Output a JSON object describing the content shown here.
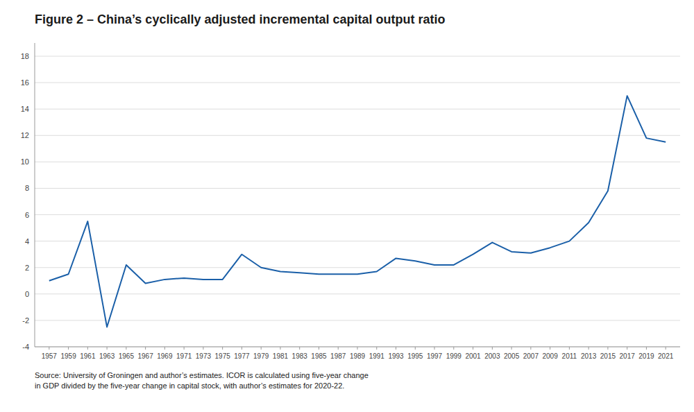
{
  "chart_data": {
    "type": "line",
    "title": "Figure 2 – China’s cyclically adjusted incremental capital output ratio",
    "annotations": [
      "Source: University of Groningen and author’s estimates. ICOR is calculated using five-year change\nin GDP divided by the five-year change in capital stock, with author’s estimates for 2020-22."
    ],
    "x": [
      1957,
      1959,
      1961,
      1963,
      1965,
      1967,
      1969,
      1971,
      1973,
      1975,
      1977,
      1979,
      1981,
      1983,
      1985,
      1987,
      1989,
      1991,
      1993,
      1995,
      1997,
      1999,
      2001,
      2003,
      2005,
      2007,
      2009,
      2011,
      2013,
      2015,
      2017,
      2019,
      2021
    ],
    "values": [
      1.0,
      1.5,
      5.5,
      -2.5,
      2.2,
      0.8,
      1.1,
      1.2,
      1.1,
      1.1,
      3.0,
      2.0,
      1.7,
      1.6,
      1.5,
      1.5,
      1.5,
      1.7,
      2.7,
      2.5,
      2.2,
      2.2,
      3.0,
      3.9,
      3.2,
      3.1,
      3.5,
      4.0,
      5.4,
      7.8,
      15.0,
      11.8,
      11.5
    ],
    "color": "#1a5fa8",
    "xlim": [
      1955.5,
      2022.5
    ],
    "xticks": [
      1957,
      1959,
      1961,
      1963,
      1965,
      1967,
      1969,
      1971,
      1973,
      1975,
      1977,
      1979,
      1981,
      1983,
      1985,
      1987,
      1989,
      1991,
      1993,
      1995,
      1997,
      1999,
      2001,
      2003,
      2005,
      2007,
      2009,
      2011,
      2013,
      2015,
      2017,
      2019,
      2021
    ],
    "ylim": [
      -4,
      19
    ],
    "yticks": [
      -4,
      -2,
      0,
      2,
      4,
      6,
      8,
      10,
      12,
      14,
      16,
      18
    ],
    "grid": true
  }
}
